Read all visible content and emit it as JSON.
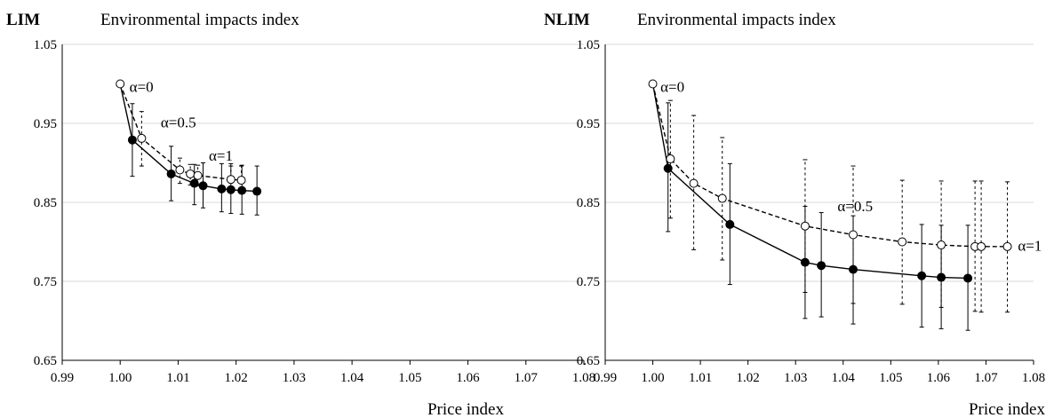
{
  "chart_data": [
    {
      "type": "line",
      "panel_label": "LIM",
      "title": "Environmental impacts index",
      "xlabel": "Price index",
      "ylabel": "",
      "xlim": [
        0.99,
        1.08
      ],
      "ylim": [
        0.65,
        1.05
      ],
      "xticks": [
        "0.99",
        "1.00",
        "1.01",
        "1.02",
        "1.03",
        "1.04",
        "1.05",
        "1.06",
        "1.07",
        "1.08"
      ],
      "yticks": [
        "0.65",
        "0.75",
        "0.85",
        "0.95",
        "1.05"
      ],
      "grid": "horizontal",
      "series": [
        {
          "style": "solid",
          "marker": "filled",
          "points": [
            {
              "x": 1.0021,
              "y": 0.929,
              "err_lo": 0.883,
              "err_hi": 0.975
            },
            {
              "x": 1.0088,
              "y": 0.886,
              "err_lo": 0.852,
              "err_hi": 0.921
            },
            {
              "x": 1.0128,
              "y": 0.874,
              "err_lo": 0.847,
              "err_hi": 0.898
            },
            {
              "x": 1.0143,
              "y": 0.871,
              "err_lo": 0.843,
              "err_hi": 0.9
            },
            {
              "x": 1.0175,
              "y": 0.867,
              "err_lo": 0.838,
              "err_hi": 0.899
            },
            {
              "x": 1.0191,
              "y": 0.866,
              "err_lo": 0.836,
              "err_hi": 0.899
            },
            {
              "x": 1.021,
              "y": 0.865,
              "err_lo": 0.835,
              "err_hi": 0.897
            },
            {
              "x": 1.0236,
              "y": 0.864,
              "err_lo": 0.834,
              "err_hi": 0.896
            }
          ]
        },
        {
          "style": "dashed",
          "marker": "open",
          "points": [
            {
              "x": 1.0037,
              "y": 0.931,
              "err_lo": 0.896,
              "err_hi": 0.965
            },
            {
              "x": 1.0103,
              "y": 0.891,
              "err_lo": 0.874,
              "err_hi": 0.906
            },
            {
              "x": 1.0121,
              "y": 0.886,
              "err_lo": 0.872,
              "err_hi": 0.898
            },
            {
              "x": 1.0134,
              "y": 0.884,
              "err_lo": 0.871,
              "err_hi": 0.897
            },
            {
              "x": 1.0191,
              "y": 0.879,
              "err_lo": 0.868,
              "err_hi": 0.896
            },
            {
              "x": 1.0209,
              "y": 0.878,
              "err_lo": 0.867,
              "err_hi": 0.896
            }
          ]
        }
      ],
      "origin_point": {
        "x": 1.0,
        "y": 1.0
      },
      "annotations": [
        {
          "text": "α=0",
          "x": 1.0016,
          "y": 0.99
        },
        {
          "text": "α=0.5",
          "x": 1.007,
          "y": 0.945
        },
        {
          "text": "α=1",
          "x": 1.0153,
          "y": 0.903
        }
      ]
    },
    {
      "type": "line",
      "panel_label": "NLIM",
      "title": "Environmental impacts index",
      "xlabel": "Price index",
      "ylabel": "",
      "xlim": [
        0.99,
        1.08
      ],
      "ylim": [
        0.65,
        1.05
      ],
      "xticks": [
        "0.99",
        "1.00",
        "1.01",
        "1.02",
        "1.03",
        "1.04",
        "1.05",
        "1.06",
        "1.07",
        "1.08"
      ],
      "yticks": [
        "0.65",
        "0.75",
        "0.85",
        "0.95",
        "1.05"
      ],
      "grid": "horizontal",
      "series": [
        {
          "style": "solid",
          "marker": "filled",
          "points": [
            {
              "x": 1.0032,
              "y": 0.893,
              "err_lo": 0.813,
              "err_hi": 0.976
            },
            {
              "x": 1.0162,
              "y": 0.822,
              "err_lo": 0.746,
              "err_hi": 0.899
            },
            {
              "x": 1.032,
              "y": 0.774,
              "err_lo": 0.703,
              "err_hi": 0.845
            },
            {
              "x": 1.0354,
              "y": 0.77,
              "err_lo": 0.705,
              "err_hi": 0.837
            },
            {
              "x": 1.0421,
              "y": 0.765,
              "err_lo": 0.696,
              "err_hi": 0.833
            },
            {
              "x": 1.0565,
              "y": 0.757,
              "err_lo": 0.692,
              "err_hi": 0.822
            },
            {
              "x": 1.0606,
              "y": 0.755,
              "err_lo": 0.69,
              "err_hi": 0.821
            },
            {
              "x": 1.0662,
              "y": 0.754,
              "err_lo": 0.688,
              "err_hi": 0.821
            }
          ]
        },
        {
          "style": "dashed",
          "marker": "open",
          "points": [
            {
              "x": 1.0037,
              "y": 0.905,
              "err_lo": 0.83,
              "err_hi": 0.979
            },
            {
              "x": 1.0086,
              "y": 0.874,
              "err_lo": 0.79,
              "err_hi": 0.96
            },
            {
              "x": 1.0146,
              "y": 0.855,
              "err_lo": 0.777,
              "err_hi": 0.932
            },
            {
              "x": 1.032,
              "y": 0.82,
              "err_lo": 0.736,
              "err_hi": 0.904
            },
            {
              "x": 1.0421,
              "y": 0.809,
              "err_lo": 0.722,
              "err_hi": 0.896
            },
            {
              "x": 1.0524,
              "y": 0.8,
              "err_lo": 0.721,
              "err_hi": 0.878
            },
            {
              "x": 1.0606,
              "y": 0.796,
              "err_lo": 0.717,
              "err_hi": 0.877
            },
            {
              "x": 1.0677,
              "y": 0.794,
              "err_lo": 0.712,
              "err_hi": 0.877
            },
            {
              "x": 1.069,
              "y": 0.794,
              "err_lo": 0.711,
              "err_hi": 0.877
            },
            {
              "x": 1.0745,
              "y": 0.794,
              "err_lo": 0.711,
              "err_hi": 0.876
            }
          ]
        }
      ],
      "origin_point": {
        "x": 1.0,
        "y": 1.0
      },
      "annotations": [
        {
          "text": "α=0",
          "x": 1.0016,
          "y": 0.99
        },
        {
          "text": "α=0.5",
          "x": 1.0388,
          "y": 0.839
        },
        {
          "text": "α=1",
          "x": 1.0767,
          "y": 0.789
        }
      ]
    }
  ]
}
